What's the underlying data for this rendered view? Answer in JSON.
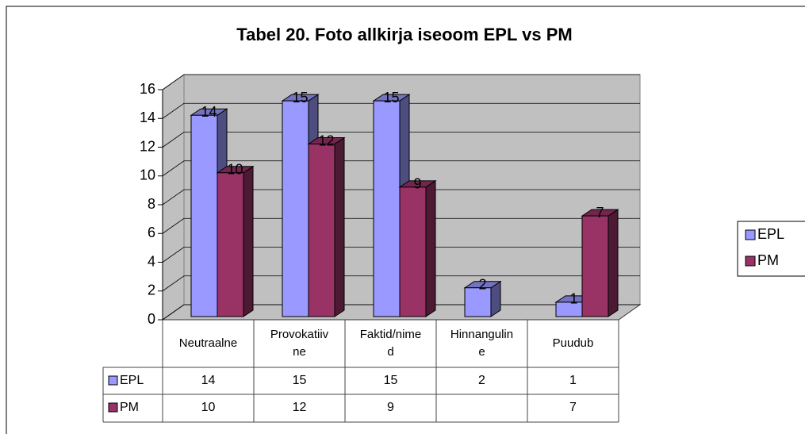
{
  "chart_data": {
    "type": "bar3d",
    "title": "Tabel 20. Foto allkirja iseoom EPL vs PM",
    "categories": [
      "Neutraalne",
      "Provokatiivne",
      "Faktid/nimed",
      "Hinnanguline",
      "Puudub"
    ],
    "series": [
      {
        "name": "EPL",
        "color": "#9999ff",
        "values": [
          14,
          15,
          15,
          2,
          1
        ]
      },
      {
        "name": "PM",
        "color": "#993366",
        "values": [
          10,
          12,
          9,
          null,
          7
        ]
      }
    ],
    "ylim": [
      0,
      16
    ],
    "yticks": [
      0,
      2,
      4,
      6,
      8,
      10,
      12,
      14,
      16
    ],
    "grid": true,
    "legend": "right",
    "data_table": true
  }
}
